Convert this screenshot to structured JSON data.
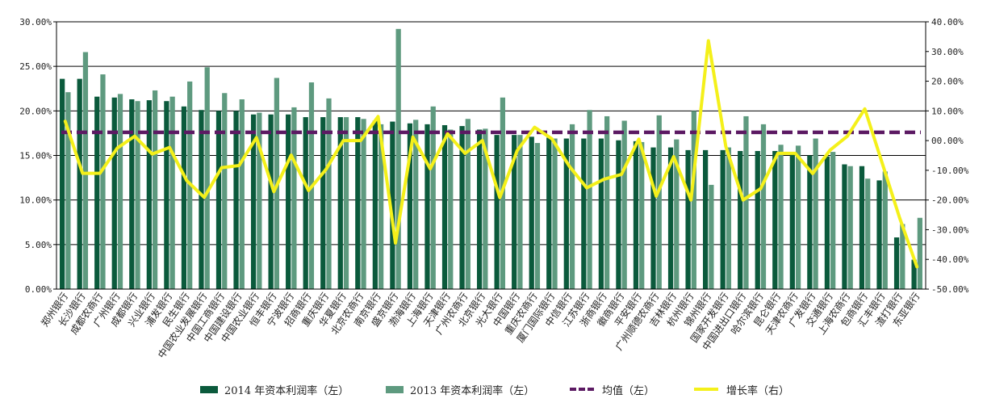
{
  "chart_data": {
    "type": "bar",
    "categories": [
      "郑州银行",
      "长沙银行",
      "成都农商行",
      "广州银行",
      "成都银行",
      "兴业银行",
      "浦发银行",
      "民生银行",
      "中国农业发展银行",
      "中国工商银行",
      "中国建设银行",
      "中国农业银行",
      "恒丰银行",
      "宁波银行",
      "招商银行",
      "重庆银行",
      "华夏银行",
      "北京农商行",
      "南京银行",
      "盛京银行",
      "渤海银行",
      "上海银行",
      "天津银行",
      "广州农商行",
      "北京银行",
      "光大银行",
      "中国银行",
      "重庆农商行",
      "厦门国际银行",
      "中信银行",
      "江苏银行",
      "浙商银行",
      "徽商银行",
      "平安银行",
      "广州顺德农商行",
      "吉林银行",
      "杭州银行",
      "锦州银行",
      "国家开发银行",
      "中国进出口银行",
      "哈尔滨银行",
      "昆仑银行",
      "天津农商行",
      "广发银行",
      "交通银行",
      "上海农商行",
      "包商银行",
      "汇丰银行",
      "渣打银行",
      "东亚银行"
    ],
    "series": [
      {
        "name": "2014 年资本利润率（左）",
        "axis": "left",
        "kind": "bar",
        "color": "#0b5a3c",
        "values": [
          23.6,
          23.6,
          21.6,
          21.5,
          21.3,
          21.2,
          21.1,
          20.5,
          20.1,
          20.0,
          20.0,
          19.6,
          19.6,
          19.6,
          19.3,
          19.3,
          19.3,
          19.3,
          18.9,
          18.8,
          18.6,
          18.5,
          18.4,
          18.3,
          17.9,
          17.3,
          17.3,
          17.1,
          17.0,
          16.9,
          16.9,
          16.9,
          16.7,
          16.6,
          15.9,
          15.9,
          15.6,
          15.6,
          15.6,
          15.5,
          15.5,
          15.5,
          15.4,
          15.0,
          14.9,
          14.0,
          13.8,
          12.2,
          5.8,
          3.3
        ]
      },
      {
        "name": "2013 年资本利润率（左）",
        "axis": "left",
        "kind": "bar",
        "color": "#5e9a7f",
        "values": [
          22.1,
          26.6,
          24.1,
          21.9,
          21.1,
          22.3,
          21.6,
          23.3,
          24.9,
          22.0,
          21.3,
          19.8,
          23.7,
          20.4,
          23.2,
          21.4,
          19.3,
          19.1,
          18.5,
          29.2,
          19.0,
          20.5,
          17.9,
          19.1,
          18.0,
          21.5,
          17.3,
          16.4,
          16.9,
          18.5,
          20.1,
          19.4,
          18.9,
          16.5,
          19.5,
          16.8,
          20.0,
          11.7,
          15.9,
          19.4,
          18.5,
          16.2,
          16.1,
          16.9,
          15.4,
          13.8,
          12.4,
          13.2,
          7.3,
          8.0
        ]
      },
      {
        "name": "均值（左）",
        "axis": "left",
        "kind": "hline",
        "color": "#5c1a63",
        "value": 17.6
      },
      {
        "name": "增长率（右）",
        "axis": "right",
        "kind": "line",
        "color": "#f4f01a",
        "values": [
          6.5,
          -11.0,
          -11.0,
          -2.5,
          1.5,
          -4.5,
          -2.3,
          -13.5,
          -19.1,
          -9.1,
          -8.4,
          1.0,
          -17.2,
          -4.9,
          -16.8,
          -9.7,
          0.0,
          0.0,
          8.1,
          -34.5,
          1.2,
          -9.5,
          2.3,
          -4.3,
          0.0,
          -19.2,
          -3.4,
          4.5,
          0.6,
          -8.6,
          -15.9,
          -13.0,
          -11.4,
          0.5,
          -18.7,
          -5.4,
          -20.0,
          33.6,
          -1.9,
          -20.0,
          -16.2,
          -4.3,
          -4.3,
          -11.1,
          -3.2,
          1.5,
          10.7,
          -7.6,
          -26.0,
          -42.5
        ]
      }
    ],
    "left_axis": {
      "min": 0,
      "max": 30,
      "ticks": [
        "0.00%",
        "5.00%",
        "10.00%",
        "15.00%",
        "20.00%",
        "25.00%",
        "30.00%"
      ]
    },
    "right_axis": {
      "min": -50,
      "max": 40,
      "ticks": [
        "-50.00%",
        "-40.00%",
        "-30.00%",
        "-20.00%",
        "-10.00%",
        "00.00%",
        "10.00%",
        "20.00%",
        "30.00%",
        "40.00%"
      ]
    },
    "grid": true,
    "legend": {
      "position": "bottom",
      "items": [
        "2014 年资本利润率（左）",
        "2013 年资本利润率（左）",
        "均值（左）",
        "增长率（右）"
      ]
    }
  }
}
